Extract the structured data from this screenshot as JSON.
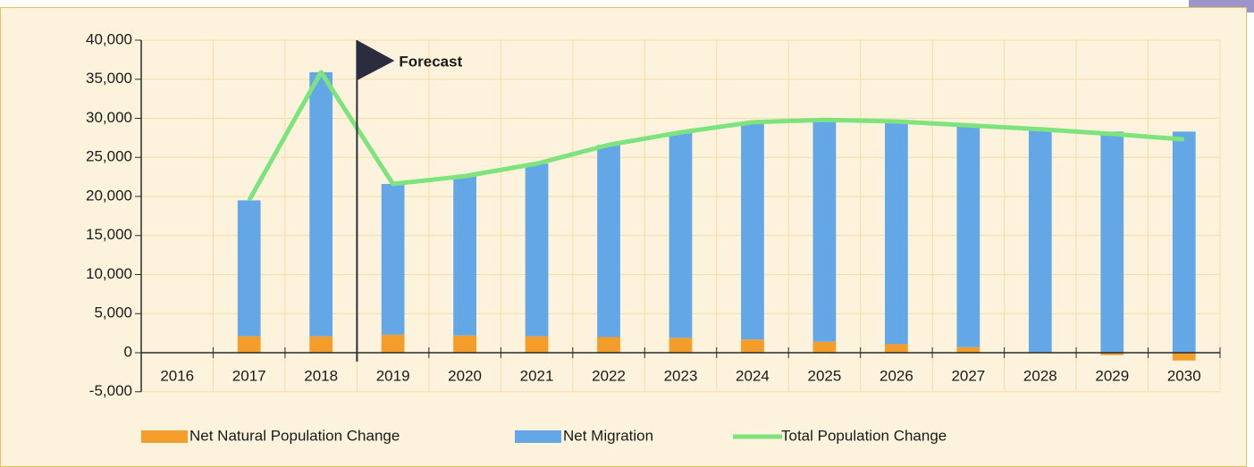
{
  "chart_data": {
    "type": "bar",
    "categories": [
      "2016",
      "2017",
      "2018",
      "2019",
      "2020",
      "2021",
      "2022",
      "2023",
      "2024",
      "2025",
      "2026",
      "2027",
      "2028",
      "2029",
      "2030"
    ],
    "series": [
      {
        "name": "Net Natural Population Change",
        "color": "#f59d2a",
        "values": [
          null,
          2100,
          2100,
          2300,
          2200,
          2100,
          2000,
          1900,
          1700,
          1400,
          1100,
          700,
          100,
          -300,
          -1000
        ]
      },
      {
        "name": "Net Migration",
        "color": "#64a7e6",
        "values": [
          null,
          17400,
          33800,
          19300,
          20400,
          22100,
          24600,
          26300,
          27800,
          28400,
          28500,
          28400,
          28500,
          28300,
          28300
        ]
      },
      {
        "name": "Total Population Change",
        "color": "#7de37d",
        "type": "line",
        "values": [
          null,
          19500,
          35900,
          21600,
          22600,
          24200,
          26600,
          28200,
          29500,
          29800,
          29600,
          29100,
          28600,
          28000,
          27300
        ]
      }
    ],
    "annotation": "Forecast",
    "ylim": [
      -5000,
      40000
    ],
    "yticks": [
      {
        "value": -5000,
        "label": "-5,000"
      },
      0,
      {
        "value": 5000,
        "label": "5,000"
      },
      {
        "value": 10000,
        "label": "10,000"
      },
      {
        "value": 15000,
        "label": "15,000"
      },
      {
        "value": 20000,
        "label": "20,000"
      },
      {
        "value": 25000,
        "label": "25,000"
      },
      {
        "value": 30000,
        "label": "30,000"
      },
      {
        "value": 35000,
        "label": "35,000"
      },
      {
        "value": 40000,
        "label": "40,000"
      }
    ],
    "grid": true
  }
}
